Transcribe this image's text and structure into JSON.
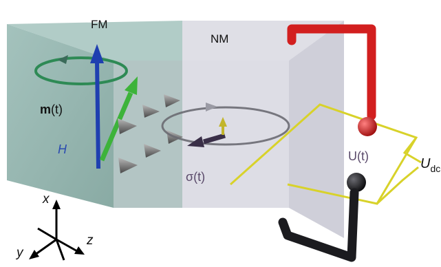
{
  "labels": {
    "fm": "FM",
    "nm": "NM",
    "magnetization_bold": "m",
    "magnetization_rest": "(t)",
    "field": "H",
    "spin_accumulation": "σ(t)",
    "ac_voltage": "U(t)",
    "dc_voltage_main": "U",
    "dc_voltage_sub": "dc",
    "axis_x": "x",
    "axis_y": "y",
    "axis_z": "z"
  },
  "colors": {
    "fm_block": "#86aaa4",
    "nm_block": "#d3d3dc",
    "magnetization_arrow": "#3db33a",
    "field_arrow": "#1f3fb0",
    "precession_ring": "#2e8a55",
    "spin_arrows": "#6d6d6d",
    "sigma_arrow": "#3a2f48",
    "sigma_small_arrow": "#c2b52b",
    "top_lead": "#d21f1f",
    "bottom_lead": "#1b1b1f",
    "dc_circuit": "#d8d22a",
    "field_label": "#2a4ab0",
    "voltage_label": "#5a4a6a"
  }
}
